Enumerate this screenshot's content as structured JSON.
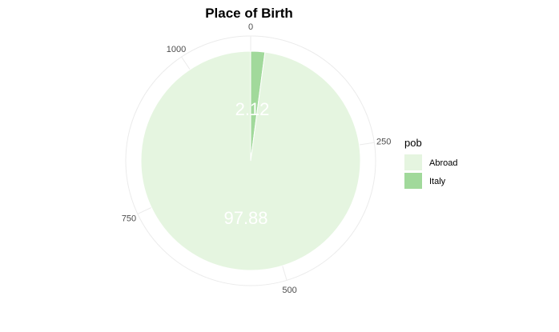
{
  "chart_data": {
    "type": "pie",
    "title": "Place of Birth",
    "total": 1103,
    "categories": [
      "Abroad",
      "Italy"
    ],
    "values": [
      1080,
      23
    ],
    "value_labels": [
      "97.88",
      "2.12"
    ],
    "colors": [
      "#e5f5e0",
      "#a1d99b"
    ],
    "theta_axis": {
      "ticks": [
        0,
        250,
        500,
        750,
        1000
      ],
      "tick_labels": [
        "0",
        "250",
        "500",
        "750",
        "1000"
      ]
    },
    "grid": true,
    "legend": {
      "title": "pob",
      "position": "right",
      "entries": [
        "Abroad",
        "Italy"
      ]
    }
  }
}
